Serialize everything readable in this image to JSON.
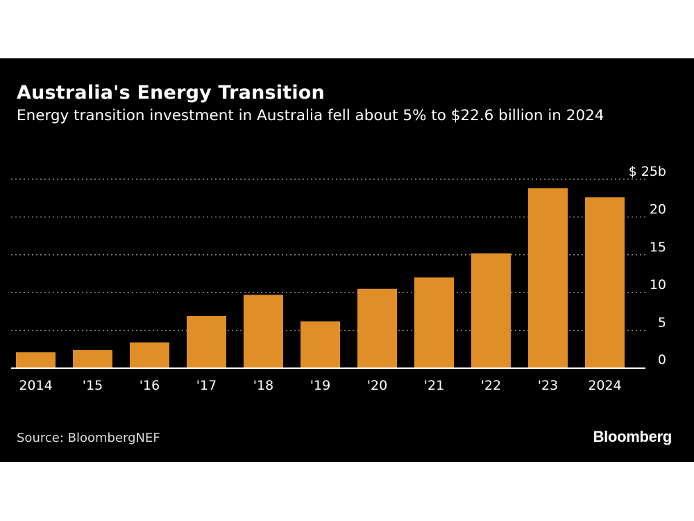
{
  "title": "Australia's Energy Transition",
  "subtitle": "Energy transition investment in Australia fell about 5% to $22.6 billion in 2024",
  "source": "Source: BloombergNEF",
  "brand": "Bloomberg",
  "colors": {
    "background": "#000000",
    "bar": "#e08e27",
    "text": "#ffffff",
    "grid": "#8a8a8a"
  },
  "chart_data": {
    "type": "bar",
    "categories": [
      "2014",
      "'15",
      "'16",
      "'17",
      "'18",
      "'19",
      "'20",
      "'21",
      "'22",
      "'23",
      "2024"
    ],
    "values": [
      2.1,
      2.4,
      3.4,
      6.9,
      9.7,
      6.2,
      10.5,
      12.0,
      15.2,
      23.8,
      22.6
    ],
    "ylim": [
      0,
      25
    ],
    "yticks": [
      0,
      5,
      10,
      15,
      20,
      25
    ],
    "ytick_labels": [
      "0",
      "5",
      "10",
      "15",
      "20",
      "$ 25b"
    ],
    "ylabel": "",
    "xlabel": "",
    "grid": true,
    "grid_style": "dotted",
    "axis_side": "right"
  }
}
